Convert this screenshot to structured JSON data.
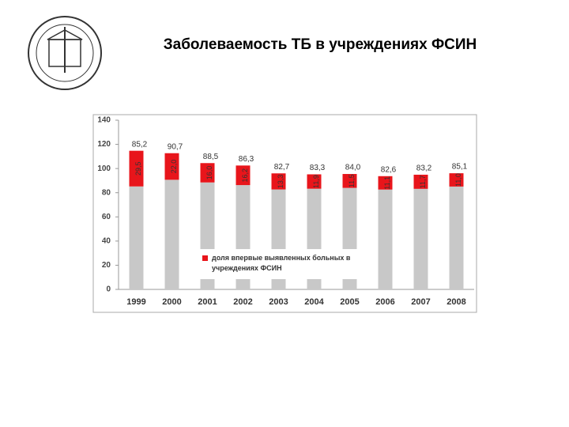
{
  "chart_data": {
    "type": "stacked_bar",
    "title": "Заболеваемость ТБ в учреждениях ФСИН",
    "categories": [
      "1999",
      "2000",
      "2001",
      "2002",
      "2003",
      "2004",
      "2005",
      "2006",
      "2007",
      "2008"
    ],
    "series": [
      {
        "color": "#c8c8c8",
        "values": [
          85.2,
          90.7,
          88.5,
          86.3,
          82.7,
          83.3,
          84.0,
          82.6,
          83.2,
          85.1
        ],
        "value_labels": [
          "85,2",
          "90,7",
          "88,5",
          "86,3",
          "82,7",
          "83,3",
          "84,0",
          "82,6",
          "83,2",
          "85,1"
        ]
      },
      {
        "name": "доля впервые выявленных больных в учреждениях ФСИН",
        "color": "#e8151b",
        "values": [
          29.5,
          22.0,
          16.0,
          16.2,
          13.3,
          11.9,
          11.5,
          11.1,
          11.7,
          11.0
        ],
        "value_labels": [
          "29,5",
          "22,0",
          "16,0",
          "16,2",
          "13,3",
          "11,9",
          "11,5",
          "11,1",
          "11,7",
          "11,0"
        ]
      }
    ],
    "ylim": [
      0,
      140
    ],
    "yticks": [
      0,
      20,
      40,
      60,
      80,
      100,
      120,
      140
    ],
    "grid": false
  }
}
